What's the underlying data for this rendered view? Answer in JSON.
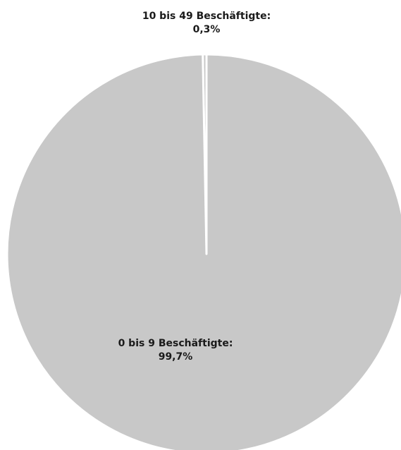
{
  "chart_data": {
    "type": "pie",
    "categories": [
      "10 bis 49 Beschäftigte",
      "0 bis 9 Beschäftigte"
    ],
    "values": [
      0.3,
      99.7
    ],
    "labels": [
      {
        "name": "10 bis 49 Beschäftigte:",
        "value": "0,3%"
      },
      {
        "name": "0 bis 9 Beschäftigte:",
        "value": "99,7%"
      }
    ],
    "colors": [
      "#c8c8c8",
      "#c8c8c8"
    ],
    "slice_border_color": "#ffffff",
    "legend": "none"
  }
}
